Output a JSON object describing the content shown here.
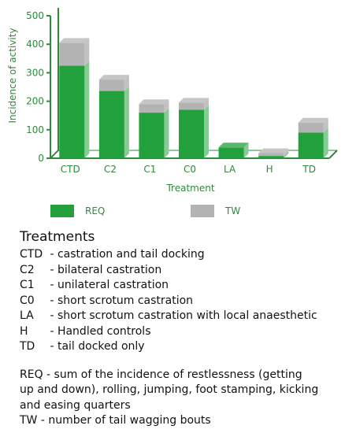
{
  "chart_data": {
    "type": "bar",
    "stacked": true,
    "categories": [
      "CTD",
      "C2",
      "C1",
      "C0",
      "LA",
      "H",
      "TD"
    ],
    "series": [
      {
        "name": "REQ",
        "color": "#22a03c",
        "values": [
          325,
          236,
          160,
          170,
          38,
          8,
          90
        ]
      },
      {
        "name": "TW",
        "color": "#b3b3b3",
        "values": [
          80,
          40,
          30,
          25,
          0,
          10,
          35
        ]
      }
    ],
    "xlabel": "Treatment",
    "ylabel": "Incidence of activity",
    "ylim": [
      0,
      500
    ],
    "yticks": [
      0,
      100,
      200,
      300,
      400,
      500
    ],
    "grid": false,
    "legend_position": "bottom"
  },
  "notes": {
    "heading": "Treatments",
    "treatments": [
      {
        "code": "CTD",
        "text": "- castration and tail docking"
      },
      {
        "code": "C2",
        "text": "- bilateral castration"
      },
      {
        "code": "C1",
        "text": "- unilateral castration"
      },
      {
        "code": "C0",
        "text": "- short scrotum castration"
      },
      {
        "code": "LA",
        "text": "- short scrotum castration with local anaesthetic"
      },
      {
        "code": "H",
        "text": "- Handled controls"
      },
      {
        "code": "TD",
        "text": "- tail docked only"
      }
    ],
    "req_definition": "REQ - sum of the incidence of restlessness (getting up and down), rolling, jumping, foot stamping, kicking and easing quarters",
    "tw_definition": "TW - number of tail wagging bouts"
  }
}
